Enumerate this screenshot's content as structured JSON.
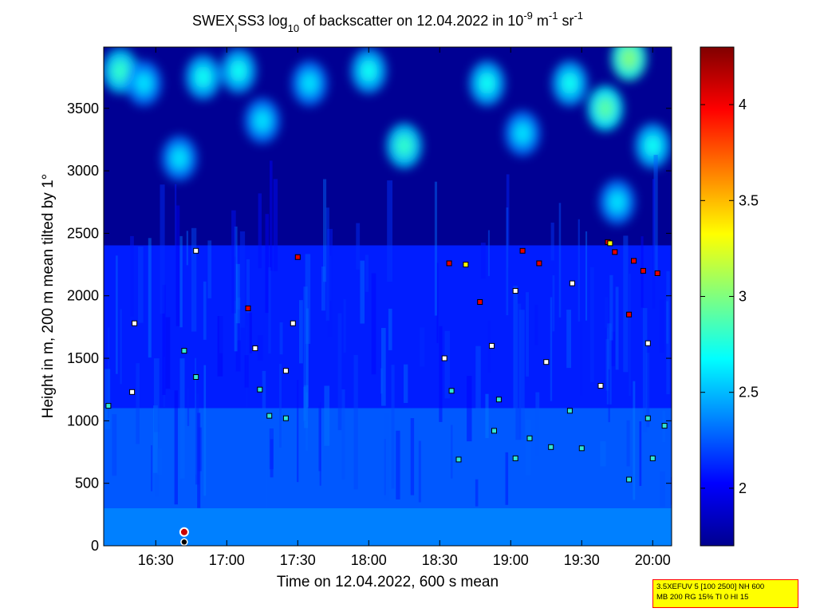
{
  "chart_data": {
    "type": "heatmap",
    "title_parts": {
      "prefix": "SWEX",
      "sub_i": "I",
      "after_sub": "SS3 log",
      "sub_10": "10",
      "middle": " of backscatter on 12.04.2022 in 10",
      "sup_1": "-9",
      "mid2": " m",
      "sup_2": "-1",
      "mid3": " sr",
      "sup_3": "-1"
    },
    "xlabel": "Time on 12.04.2022, 600 s mean",
    "ylabel": "Height in m, 200 m mean tilted by 1°",
    "x_unit": "time (HH:MM)",
    "xlim": [
      "16:08",
      "20:08"
    ],
    "ylim": [
      0,
      3990
    ],
    "x_ticks": [
      "16:30",
      "17:00",
      "17:30",
      "18:00",
      "18:30",
      "19:00",
      "19:30",
      "20:00"
    ],
    "y_ticks": [
      0,
      500,
      1000,
      1500,
      2000,
      2500,
      3000,
      3500
    ],
    "colorbar": {
      "range": [
        1.7,
        4.3
      ],
      "ticks": [
        2,
        2.5,
        3,
        3.5,
        4
      ],
      "tick_labels": [
        "2",
        "2.5",
        "3",
        "3.5",
        "4"
      ],
      "colormap": "jet"
    },
    "layers": [
      {
        "height_range": [
          0,
          300
        ],
        "value": 2.35
      },
      {
        "height_range": [
          300,
          1100
        ],
        "value": 2.25
      },
      {
        "height_range": [
          1100,
          2400
        ],
        "value": 2.1
      },
      {
        "height_range": [
          2400,
          3990
        ],
        "value": 1.75
      }
    ],
    "cloud_patches": [
      {
        "time": "16:15",
        "height": 3800,
        "value": 2.8
      },
      {
        "time": "16:25",
        "height": 3700,
        "value": 2.6
      },
      {
        "time": "16:50",
        "height": 3750,
        "value": 2.7
      },
      {
        "time": "17:05",
        "height": 3800,
        "value": 2.7
      },
      {
        "time": "17:15",
        "height": 3400,
        "value": 2.6
      },
      {
        "time": "17:35",
        "height": 3700,
        "value": 2.6
      },
      {
        "time": "18:00",
        "height": 3800,
        "value": 2.7
      },
      {
        "time": "18:15",
        "height": 3200,
        "value": 2.8
      },
      {
        "time": "18:50",
        "height": 3700,
        "value": 2.7
      },
      {
        "time": "19:05",
        "height": 3300,
        "value": 2.6
      },
      {
        "time": "19:25",
        "height": 3700,
        "value": 2.7
      },
      {
        "time": "19:40",
        "height": 3500,
        "value": 2.9
      },
      {
        "time": "19:50",
        "height": 3900,
        "value": 3.0
      },
      {
        "time": "20:00",
        "height": 3200,
        "value": 2.7
      },
      {
        "time": "16:40",
        "height": 3100,
        "value": 2.6
      },
      {
        "time": "19:45",
        "height": 2750,
        "value": 2.6
      }
    ],
    "markers": [
      {
        "time": "16:10",
        "height": 1120,
        "color": "cyan"
      },
      {
        "time": "16:21",
        "height": 1780,
        "color": "white"
      },
      {
        "time": "16:20",
        "height": 1230,
        "color": "white"
      },
      {
        "time": "16:42",
        "height": 1560,
        "color": "cyan"
      },
      {
        "time": "16:47",
        "height": 2360,
        "color": "white"
      },
      {
        "time": "16:47",
        "height": 1350,
        "color": "cyan"
      },
      {
        "time": "17:09",
        "height": 1900,
        "color": "red"
      },
      {
        "time": "17:12",
        "height": 1580,
        "color": "white"
      },
      {
        "time": "17:14",
        "height": 1250,
        "color": "cyan"
      },
      {
        "time": "17:18",
        "height": 1040,
        "color": "cyan"
      },
      {
        "time": "17:25",
        "height": 1020,
        "color": "cyan"
      },
      {
        "time": "17:30",
        "height": 2310,
        "color": "red"
      },
      {
        "time": "17:28",
        "height": 1780,
        "color": "white"
      },
      {
        "time": "17:25",
        "height": 1400,
        "color": "white"
      },
      {
        "time": "18:34",
        "height": 2260,
        "color": "red"
      },
      {
        "time": "18:32",
        "height": 1500,
        "color": "white"
      },
      {
        "time": "18:35",
        "height": 1240,
        "color": "cyan"
      },
      {
        "time": "18:38",
        "height": 690,
        "color": "cyan"
      },
      {
        "time": "18:47",
        "height": 1950,
        "color": "red"
      },
      {
        "time": "18:52",
        "height": 1600,
        "color": "white"
      },
      {
        "time": "18:55",
        "height": 1170,
        "color": "cyan"
      },
      {
        "time": "18:53",
        "height": 920,
        "color": "cyan"
      },
      {
        "time": "19:02",
        "height": 2040,
        "color": "white"
      },
      {
        "time": "19:05",
        "height": 2360,
        "color": "red"
      },
      {
        "time": "19:02",
        "height": 700,
        "color": "cyan"
      },
      {
        "time": "19:08",
        "height": 860,
        "color": "cyan"
      },
      {
        "time": "19:12",
        "height": 2260,
        "color": "red"
      },
      {
        "time": "19:15",
        "height": 1470,
        "color": "white"
      },
      {
        "time": "19:17",
        "height": 790,
        "color": "cyan"
      },
      {
        "time": "19:26",
        "height": 2100,
        "color": "white"
      },
      {
        "time": "19:25",
        "height": 1080,
        "color": "cyan"
      },
      {
        "time": "19:30",
        "height": 780,
        "color": "cyan"
      },
      {
        "time": "19:38",
        "height": 1280,
        "color": "white"
      },
      {
        "time": "19:41",
        "height": 2430,
        "color": "red"
      },
      {
        "time": "19:44",
        "height": 2350,
        "color": "red"
      },
      {
        "time": "19:50",
        "height": 1850,
        "color": "red"
      },
      {
        "time": "19:52",
        "height": 2280,
        "color": "red"
      },
      {
        "time": "19:56",
        "height": 2200,
        "color": "red"
      },
      {
        "time": "20:02",
        "height": 2180,
        "color": "red"
      },
      {
        "time": "19:58",
        "height": 1620,
        "color": "white"
      },
      {
        "time": "19:58",
        "height": 1020,
        "color": "cyan"
      },
      {
        "time": "20:05",
        "height": 960,
        "color": "cyan"
      },
      {
        "time": "19:50",
        "height": 530,
        "color": "cyan"
      },
      {
        "time": "20:00",
        "height": 700,
        "color": "cyan"
      },
      {
        "time": "19:42",
        "height": 2420,
        "color": "yellow"
      },
      {
        "time": "18:41",
        "height": 2250,
        "color": "yellow"
      },
      {
        "time": "16:42",
        "height": 110,
        "color": "red-ring"
      },
      {
        "time": "16:42",
        "height": 30,
        "color": "black"
      }
    ],
    "grid": false
  },
  "info_box": {
    "line1": "3.5XEFUV 5 [100 2500] NH 600",
    "line2": "MB 200 RG 15% TI 0 HI 15"
  }
}
